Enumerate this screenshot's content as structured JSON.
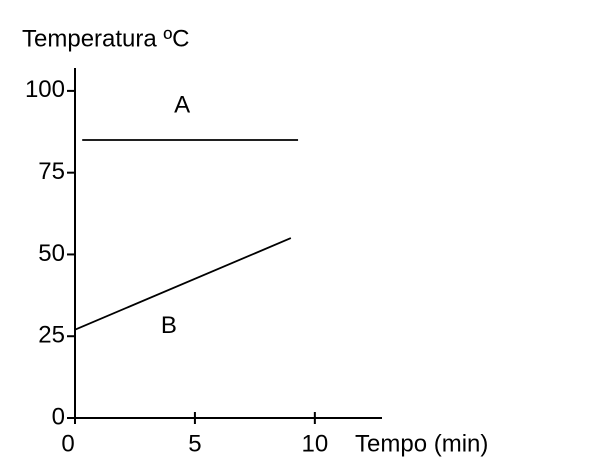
{
  "chart_data": {
    "type": "line",
    "y_label": "Temperatura ºC",
    "x_label": "Tempo (min)",
    "series": [
      {
        "name": "A",
        "color": "#000000",
        "x": [
          0.3,
          9.3
        ],
        "values": [
          85,
          85
        ]
      },
      {
        "name": "B",
        "color": "#000000",
        "x": [
          0,
          9
        ],
        "values": [
          27,
          55
        ]
      }
    ],
    "xlim": [
      0,
      12.8
    ],
    "xticks": [
      0,
      5,
      10
    ],
    "ylim": [
      0,
      107
    ],
    "yticks": [
      0,
      25,
      50,
      75,
      100
    ],
    "grid": false
  }
}
